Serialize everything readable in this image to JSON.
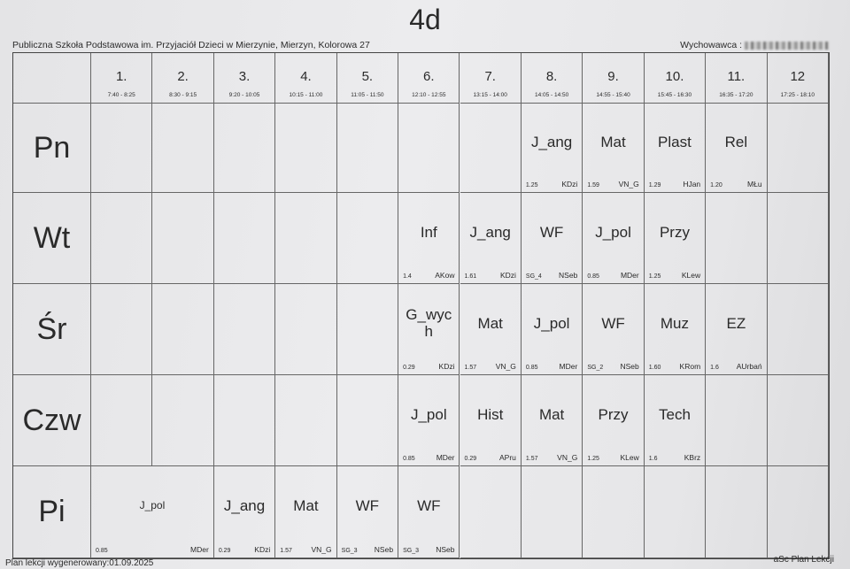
{
  "title": "4d",
  "school": "Publiczna Szkoła Podstawowa im. Przyjaciół Dzieci w Mierzynie, Mierzyn, Kolorowa 27",
  "tutor_label": "Wychowawca :",
  "periods": [
    {
      "num": "1.",
      "time": "7:40 - 8:25"
    },
    {
      "num": "2.",
      "time": "8:30 - 9:15"
    },
    {
      "num": "3.",
      "time": "9:20 - 10:05"
    },
    {
      "num": "4.",
      "time": "10:15 - 11:00"
    },
    {
      "num": "5.",
      "time": "11:05 - 11:50"
    },
    {
      "num": "6.",
      "time": "12:10 - 12:55"
    },
    {
      "num": "7.",
      "time": "13:15 - 14:00"
    },
    {
      "num": "8.",
      "time": "14:05 - 14:50"
    },
    {
      "num": "9.",
      "time": "14:55 - 15:40"
    },
    {
      "num": "10.",
      "time": "15:45 - 16:30"
    },
    {
      "num": "11.",
      "time": "16:35 - 17:20"
    },
    {
      "num": "12",
      "time": "17:25 - 18:10"
    }
  ],
  "days": [
    "Pn",
    "Wt",
    "Śr",
    "Czw",
    "Pi"
  ],
  "lessons": [
    {
      "day": 0,
      "period": 8,
      "span": 1,
      "subject": "J_ang",
      "room": "1.25",
      "teacher": "KDzi"
    },
    {
      "day": 0,
      "period": 9,
      "span": 1,
      "subject": "Mat",
      "room": "1.59",
      "teacher": "VN_G"
    },
    {
      "day": 0,
      "period": 10,
      "span": 1,
      "subject": "Plast",
      "room": "1.29",
      "teacher": "HJan"
    },
    {
      "day": 0,
      "period": 11,
      "span": 1,
      "subject": "Rel",
      "room": "1.20",
      "teacher": "MŁu"
    },
    {
      "day": 1,
      "period": 6,
      "span": 1,
      "subject": "Inf",
      "room": "1.4",
      "teacher": "AKow"
    },
    {
      "day": 1,
      "period": 7,
      "span": 1,
      "subject": "J_ang",
      "room": "1.61",
      "teacher": "KDzi"
    },
    {
      "day": 1,
      "period": 8,
      "span": 1,
      "subject": "WF",
      "room": "SG_4",
      "teacher": "NSeb"
    },
    {
      "day": 1,
      "period": 9,
      "span": 1,
      "subject": "J_pol",
      "room": "0.85",
      "teacher": "MDer"
    },
    {
      "day": 1,
      "period": 10,
      "span": 1,
      "subject": "Przy",
      "room": "1.25",
      "teacher": "KLew"
    },
    {
      "day": 2,
      "period": 6,
      "span": 1,
      "subject": "G_wych",
      "room": "0.29",
      "teacher": "KDzi"
    },
    {
      "day": 2,
      "period": 7,
      "span": 1,
      "subject": "Mat",
      "room": "1.57",
      "teacher": "VN_G"
    },
    {
      "day": 2,
      "period": 8,
      "span": 1,
      "subject": "J_pol",
      "room": "0.85",
      "teacher": "MDer"
    },
    {
      "day": 2,
      "period": 9,
      "span": 1,
      "subject": "WF",
      "room": "SG_2",
      "teacher": "NSeb"
    },
    {
      "day": 2,
      "period": 10,
      "span": 1,
      "subject": "Muz",
      "room": "1.60",
      "teacher": "KRom"
    },
    {
      "day": 2,
      "period": 11,
      "span": 1,
      "subject": "EZ",
      "room": "1.6",
      "teacher": "AUrbań"
    },
    {
      "day": 3,
      "period": 6,
      "span": 1,
      "subject": "J_pol",
      "room": "0.85",
      "teacher": "MDer"
    },
    {
      "day": 3,
      "period": 7,
      "span": 1,
      "subject": "Hist",
      "room": "0.29",
      "teacher": "APru"
    },
    {
      "day": 3,
      "period": 8,
      "span": 1,
      "subject": "Mat",
      "room": "1.57",
      "teacher": "VN_G"
    },
    {
      "day": 3,
      "period": 9,
      "span": 1,
      "subject": "Przy",
      "room": "1.25",
      "teacher": "KLew"
    },
    {
      "day": 3,
      "period": 10,
      "span": 1,
      "subject": "Tech",
      "room": "1.6",
      "teacher": "KBrz"
    },
    {
      "day": 4,
      "period": 1,
      "span": 2,
      "subject": "J_pol",
      "room": "0.85",
      "teacher": "MDer"
    },
    {
      "day": 4,
      "period": 3,
      "span": 1,
      "subject": "J_ang",
      "room": "0.29",
      "teacher": "KDzi"
    },
    {
      "day": 4,
      "period": 4,
      "span": 1,
      "subject": "Mat",
      "room": "1.57",
      "teacher": "VN_G"
    },
    {
      "day": 4,
      "period": 5,
      "span": 1,
      "subject": "WF",
      "room": "SG_3",
      "teacher": "NSeb"
    },
    {
      "day": 4,
      "period": 6,
      "span": 1,
      "subject": "WF",
      "room": "SG_3",
      "teacher": "NSeb"
    }
  ],
  "footer": {
    "generated": "Plan lekcji wygenerowany:01.09.2025",
    "software": "aSc Plan Lekcji"
  }
}
